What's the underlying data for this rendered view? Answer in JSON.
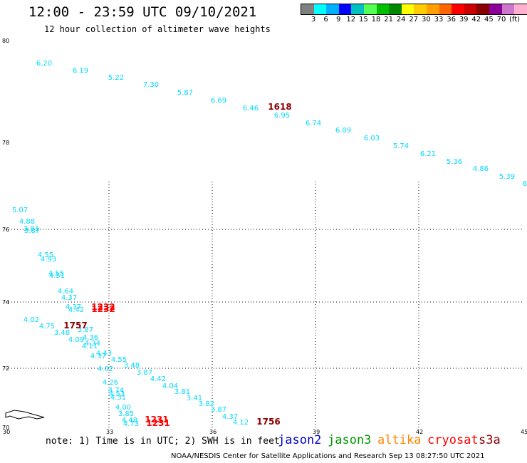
{
  "title": "12:00 - 23:59 UTC 09/10/2021",
  "subtitle": "12 hour collection of altimeter wave heights",
  "colorbar": {
    "colors": [
      "#808080",
      "#00ffff",
      "#00b0ff",
      "#0000ff",
      "#00c0c0",
      "#55ff55",
      "#00c000",
      "#008800",
      "#ffff00",
      "#ffcc00",
      "#ffa000",
      "#ff6600",
      "#ff0000",
      "#cc0000",
      "#880000",
      "#8b0099",
      "#cc77cc",
      "#ffb0d0",
      "#000000"
    ],
    "labels": [
      "3",
      "6",
      "9",
      "12",
      "15",
      "18",
      "21",
      "24",
      "27",
      "30",
      "33",
      "36",
      "39",
      "42",
      "45",
      "70"
    ],
    "unit": "(ft)"
  },
  "axes": {
    "y_labels": [
      "80",
      "78",
      "76",
      "74",
      "72",
      "70"
    ],
    "x_labels": [
      "30",
      "33",
      "36",
      "39",
      "42",
      "45"
    ]
  },
  "tracks": [
    {
      "mission": "jason3",
      "color": "#00d8ff",
      "points": [
        [
          "6.20",
          62,
          92
        ],
        [
          "6.19",
          113,
          102
        ],
        [
          "5.22",
          163,
          112
        ],
        [
          "7.30",
          212,
          122
        ],
        [
          "5.87",
          260,
          133
        ],
        [
          "6.69",
          307,
          144
        ],
        [
          "6.46",
          352,
          155
        ],
        [
          "6.95",
          396,
          165
        ],
        [
          "6.74",
          440,
          176
        ],
        [
          "6.09",
          482,
          186
        ],
        [
          "6.03",
          522,
          197
        ],
        [
          "5.74",
          563,
          208
        ],
        [
          "6.21",
          601,
          219
        ],
        [
          "5.36",
          638,
          230
        ],
        [
          "4.86",
          675,
          240
        ],
        [
          "5.39",
          712,
          251
        ],
        [
          "6",
          737,
          261
        ]
      ]
    },
    {
      "mission": "jason3",
      "color": "#00d8ff",
      "points": [
        [
          "5.07",
          28,
          298
        ],
        [
          "4.88",
          38,
          314
        ],
        [
          "3.91",
          44,
          324
        ],
        [
          "3.87",
          45,
          327
        ],
        [
          "4.55",
          64,
          361
        ],
        [
          "4.93",
          68,
          367
        ],
        [
          "4.55",
          79,
          387
        ],
        [
          "4.51",
          80,
          390
        ],
        [
          "4.64",
          92,
          412
        ],
        [
          "4.37",
          97,
          421
        ],
        [
          "4.37",
          103,
          434
        ],
        [
          "4.42",
          107,
          438
        ],
        [
          "4.02",
          44,
          452
        ],
        [
          "4.75",
          66,
          461
        ],
        [
          "3.48",
          87,
          470
        ],
        [
          "3.87",
          120,
          466
        ],
        [
          "4.09",
          107,
          480
        ],
        [
          "4.36",
          127,
          477
        ],
        [
          "4.11",
          126,
          489
        ],
        [
          "4.34",
          130,
          485
        ],
        [
          "4.43",
          146,
          499
        ],
        [
          "4.37",
          138,
          503
        ],
        [
          "4.55",
          167,
          508
        ],
        [
          "4.02",
          148,
          521
        ],
        [
          "3.48",
          185,
          516
        ],
        [
          "3.87",
          203,
          526
        ],
        [
          "4.42",
          222,
          535
        ],
        [
          "4.04",
          239,
          545
        ],
        [
          "3.81",
          256,
          553
        ],
        [
          "3.41",
          273,
          562
        ],
        [
          "3.82",
          290,
          570
        ],
        [
          "3.87",
          307,
          578
        ],
        [
          "4.37",
          323,
          588
        ],
        [
          "4.12",
          338,
          596
        ],
        [
          "4.26",
          155,
          540
        ],
        [
          "4.74",
          163,
          551
        ],
        [
          "4.53",
          164,
          556
        ],
        [
          "4.31",
          166,
          561
        ],
        [
          "4.00",
          173,
          575
        ],
        [
          "3.85",
          177,
          584
        ],
        [
          "4.48",
          182,
          593
        ],
        [
          "4.73",
          184,
          598
        ]
      ]
    },
    {
      "mission": "s3a",
      "color": "#8b0000",
      "points": [
        [
          "1618",
          393,
          154
        ],
        [
          "1757",
          106,
          461
        ],
        [
          "1756",
          377,
          596
        ]
      ]
    },
    {
      "mission": "cryosat",
      "color": "#ff0000",
      "points": [
        [
          "1232",
          145,
          435
        ],
        [
          "1232",
          145,
          438
        ],
        [
          "1231",
          220,
          593
        ],
        [
          "1231",
          222,
          598
        ]
      ]
    }
  ],
  "note": "note: 1) Time is in UTC; 2) SWH is in feet",
  "missions": [
    {
      "name": "jason2",
      "color": "#0000cc"
    },
    {
      "name": "jason3",
      "color": "#009900"
    },
    {
      "name": "altika",
      "color": "#ff8800"
    },
    {
      "name": "cryosat",
      "color": "#ff0000"
    },
    {
      "name": "s3a",
      "color": "#8b0000"
    }
  ],
  "credit": "NOAA/NESDIS Center for Satellite Applications and Research    Sep 13 08:27:50 UTC 2021"
}
